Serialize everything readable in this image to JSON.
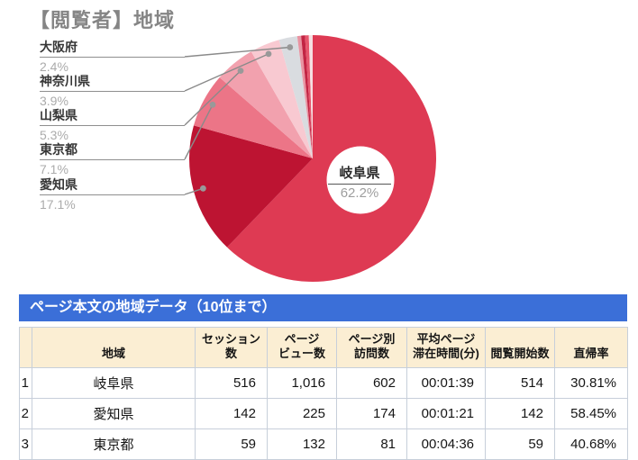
{
  "title": "【閲覧者】地域",
  "chart_data": {
    "type": "pie",
    "title": "【閲覧者】地域",
    "unit": "%",
    "start_angle_deg": 0,
    "direction": "clockwise",
    "slices": [
      {
        "id": "gifu",
        "label": "岐阜県",
        "value": 62.2,
        "color": "#DE3A53"
      },
      {
        "id": "aichi",
        "label": "愛知県",
        "value": 17.1,
        "color": "#BD1432"
      },
      {
        "id": "tokyo",
        "label": "東京都",
        "value": 7.1,
        "color": "#EC7587"
      },
      {
        "id": "yamanashi",
        "label": "山梨県",
        "value": 5.3,
        "color": "#F2A1AE"
      },
      {
        "id": "kanagawa",
        "label": "神奈川県",
        "value": 3.9,
        "color": "#F8C9D1"
      },
      {
        "id": "osaka",
        "label": "大阪府",
        "value": 2.4,
        "color": "#D9DCE0"
      },
      {
        "id": "other-1",
        "label": "",
        "value": 0.5,
        "color": "#E993A1"
      },
      {
        "id": "other-2",
        "label": "",
        "value": 0.5,
        "color": "#C22443"
      },
      {
        "id": "other-3",
        "label": "",
        "value": 0.5,
        "color": "#E6556C"
      },
      {
        "id": "other-4",
        "label": "",
        "value": 0.5,
        "color": "#F5DFE2"
      }
    ],
    "center_label": {
      "name": "岐阜県",
      "pct": "62.2%"
    },
    "callout_labels": [
      {
        "id": "osaka",
        "name": "大阪府",
        "pct": "2.4%"
      },
      {
        "id": "kanagawa",
        "name": "神奈川県",
        "pct": "3.9%"
      },
      {
        "id": "yamanashi",
        "name": "山梨県",
        "pct": "5.3%"
      },
      {
        "id": "tokyo",
        "name": "東京都",
        "pct": "7.1%"
      },
      {
        "id": "aichi",
        "name": "愛知県",
        "pct": "17.1%"
      }
    ]
  },
  "table": {
    "title": "ページ本文の地域データ（10位まで）",
    "columns": [
      {
        "key": "rank",
        "label": ""
      },
      {
        "key": "region",
        "label": "地域"
      },
      {
        "key": "sessions",
        "label": "セッション数"
      },
      {
        "key": "pageviews",
        "label": "ページ\nビュー数"
      },
      {
        "key": "unique_visits",
        "label": "ページ別\n訪問数"
      },
      {
        "key": "avg_time",
        "label": "平均ページ\n滞在時間(分)"
      },
      {
        "key": "entrances",
        "label": "閲覧開始数"
      },
      {
        "key": "bounce_rate",
        "label": "直帰率"
      }
    ],
    "rows": [
      {
        "rank": "1",
        "region": "岐阜県",
        "sessions": "516",
        "pageviews": "1,016",
        "unique_visits": "602",
        "avg_time": "00:01:39",
        "entrances": "514",
        "bounce_rate": "30.81%"
      },
      {
        "rank": "2",
        "region": "愛知県",
        "sessions": "142",
        "pageviews": "225",
        "unique_visits": "174",
        "avg_time": "00:01:21",
        "entrances": "142",
        "bounce_rate": "58.45%"
      },
      {
        "rank": "3",
        "region": "東京都",
        "sessions": "59",
        "pageviews": "132",
        "unique_visits": "81",
        "avg_time": "00:04:36",
        "entrances": "59",
        "bounce_rate": "40.68%"
      }
    ]
  },
  "colors": {
    "table_title_bar": "#3B6FD8",
    "table_header_bg": "#FBEED3",
    "table_border": "#C7CFDA",
    "leader_line": "#8A8A8A",
    "label_pct_text": "#ABABAB"
  }
}
